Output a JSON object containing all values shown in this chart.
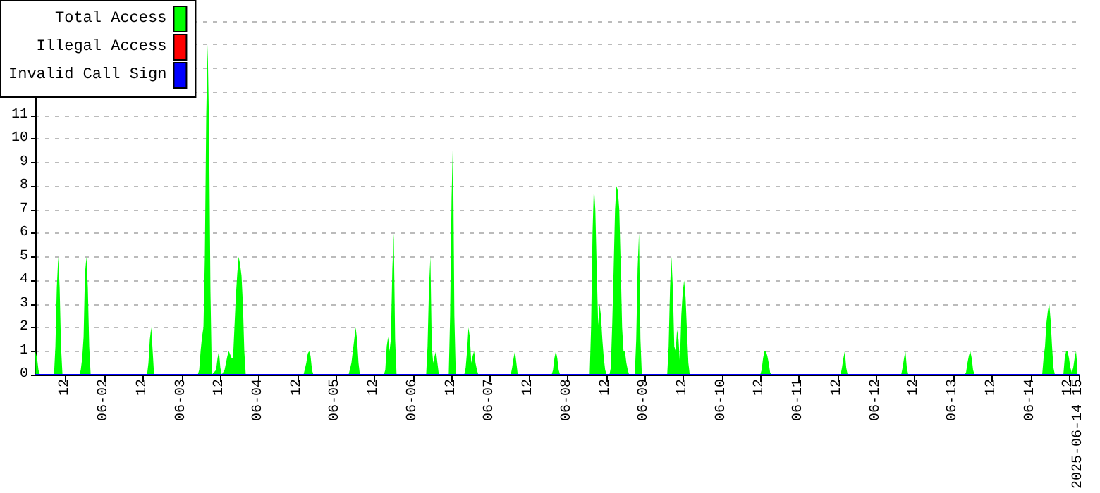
{
  "chart_data": {
    "type": "area",
    "legend": "top left",
    "grid": "y",
    "marker": "none",
    "line_style": "solid",
    "ylim": [
      0,
      15
    ],
    "yticks": [
      0,
      1,
      2,
      3,
      4,
      5,
      6,
      7,
      8,
      9,
      10,
      11,
      {
        "value": 12,
        "label": null
      },
      {
        "value": 13,
        "label": null
      },
      {
        "value": 14,
        "label": null
      },
      {
        "value": 15,
        "label": null
      }
    ],
    "xlim": [
      "2025-06-01T02:30",
      "2025-06-14T15:00"
    ],
    "xticks": [
      {
        "value": "2025-06-01T12:00",
        "label": "12"
      },
      {
        "value": "2025-06-02T00:00",
        "label": "06-02"
      },
      {
        "value": "2025-06-02T12:00",
        "label": "12"
      },
      {
        "value": "2025-06-03T00:00",
        "label": "06-03"
      },
      {
        "value": "2025-06-03T12:00",
        "label": "12"
      },
      {
        "value": "2025-06-04T00:00",
        "label": "06-04"
      },
      {
        "value": "2025-06-04T12:00",
        "label": "12"
      },
      {
        "value": "2025-06-05T00:00",
        "label": "06-05"
      },
      {
        "value": "2025-06-05T12:00",
        "label": "12"
      },
      {
        "value": "2025-06-06T00:00",
        "label": "06-06"
      },
      {
        "value": "2025-06-06T12:00",
        "label": "12"
      },
      {
        "value": "2025-06-07T00:00",
        "label": "06-07"
      },
      {
        "value": "2025-06-07T12:00",
        "label": "12"
      },
      {
        "value": "2025-06-08T00:00",
        "label": "06-08"
      },
      {
        "value": "2025-06-08T12:00",
        "label": "12"
      },
      {
        "value": "2025-06-09T00:00",
        "label": "06-09"
      },
      {
        "value": "2025-06-09T12:00",
        "label": "12"
      },
      {
        "value": "2025-06-10T00:00",
        "label": "06-10"
      },
      {
        "value": "2025-06-10T12:00",
        "label": "12"
      },
      {
        "value": "2025-06-11T00:00",
        "label": "06-11"
      },
      {
        "value": "2025-06-11T12:00",
        "label": "12"
      },
      {
        "value": "2025-06-12T00:00",
        "label": "06-12"
      },
      {
        "value": "2025-06-12T12:00",
        "label": "12"
      },
      {
        "value": "2025-06-13T00:00",
        "label": "06-13"
      },
      {
        "value": "2025-06-13T12:00",
        "label": "12"
      },
      {
        "value": "2025-06-14T00:00",
        "label": "06-14"
      },
      {
        "value": "2025-06-14T12:00",
        "label": "12"
      },
      {
        "value": "2025-06-14T15:00",
        "label": "2025-06-14 15"
      }
    ],
    "series": [
      {
        "name": "Total Access",
        "color": "#00ff00",
        "x": [
          "2025-06-01T02:30",
          "2025-06-01T02:38",
          "2025-06-01T03:04",
          "2025-06-01T03:30",
          "2025-06-01T03:57",
          "2025-06-01T08:20",
          "2025-06-01T08:46",
          "2025-06-01T09:12",
          "2025-06-01T09:39",
          "2025-06-01T10:05",
          "2025-06-01T10:31",
          "2025-06-01T10:58",
          "2025-06-01T16:13",
          "2025-06-01T16:39",
          "2025-06-01T17:06",
          "2025-06-01T17:32",
          "2025-06-01T17:58",
          "2025-06-01T18:25",
          "2025-06-01T18:51",
          "2025-06-01T19:17",
          "2025-06-01T19:44",
          "2025-06-02T13:16",
          "2025-06-02T13:42",
          "2025-06-02T14:08",
          "2025-06-02T14:34",
          "2025-06-02T15:01",
          "2025-06-02T15:27",
          "2025-06-03T05:02",
          "2025-06-03T05:29",
          "2025-06-03T05:55",
          "2025-06-03T06:21",
          "2025-06-03T06:48",
          "2025-06-03T07:14",
          "2025-06-03T07:40",
          "2025-06-03T08:06",
          "2025-06-03T08:33",
          "2025-06-03T08:59",
          "2025-06-03T09:25",
          "2025-06-03T10:44",
          "2025-06-03T11:11",
          "2025-06-03T11:37",
          "2025-06-03T12:03",
          "2025-06-03T12:29",
          "2025-06-03T13:22",
          "2025-06-03T13:48",
          "2025-06-03T14:15",
          "2025-06-03T14:41",
          "2025-06-03T15:34",
          "2025-06-03T16:00",
          "2025-06-03T16:26",
          "2025-06-03T16:52",
          "2025-06-03T17:19",
          "2025-06-03T17:45",
          "2025-06-03T18:11",
          "2025-06-03T18:38",
          "2025-06-03T19:04",
          "2025-06-03T19:30",
          "2025-06-03T19:57",
          "2025-06-04T13:55",
          "2025-06-04T14:47",
          "2025-06-04T15:14",
          "2025-06-04T15:40",
          "2025-06-04T16:06",
          "2025-06-04T16:33",
          "2025-06-04T16:59",
          "2025-06-05T03:56",
          "2025-06-05T04:49",
          "2025-06-05T05:15",
          "2025-06-05T05:42",
          "2025-06-05T06:08",
          "2025-06-05T06:34",
          "2025-06-05T07:01",
          "2025-06-05T07:27",
          "2025-06-05T14:54",
          "2025-06-05T15:20",
          "2025-06-05T15:47",
          "2025-06-05T16:13",
          "2025-06-05T16:39",
          "2025-06-05T17:05",
          "2025-06-05T17:32",
          "2025-06-05T17:58",
          "2025-06-05T18:24",
          "2025-06-05T18:51",
          "2025-06-06T04:03",
          "2025-06-06T04:29",
          "2025-06-06T04:56",
          "2025-06-06T05:22",
          "2025-06-06T05:48",
          "2025-06-06T06:14",
          "2025-06-06T06:41",
          "2025-06-06T07:07",
          "2025-06-06T07:33",
          "2025-06-06T08:00",
          "2025-06-06T11:04",
          "2025-06-06T11:30",
          "2025-06-06T11:57",
          "2025-06-06T12:23",
          "2025-06-06T12:49",
          "2025-06-06T13:16",
          "2025-06-06T15:53",
          "2025-06-06T16:20",
          "2025-06-06T16:46",
          "2025-06-06T17:12",
          "2025-06-06T17:38",
          "2025-06-06T18:05",
          "2025-06-06T18:31",
          "2025-06-06T18:57",
          "2025-06-06T19:23",
          "2025-06-06T19:50",
          "2025-06-06T20:16",
          "2025-06-07T06:21",
          "2025-06-07T06:47",
          "2025-06-07T07:14",
          "2025-06-07T07:40",
          "2025-06-07T08:06",
          "2025-06-07T08:32",
          "2025-06-07T19:04",
          "2025-06-07T19:30",
          "2025-06-07T19:56",
          "2025-06-07T20:23",
          "2025-06-07T20:49",
          "2025-06-07T21:15",
          "2025-06-07T21:41",
          "2025-06-08T06:54",
          "2025-06-08T07:20",
          "2025-06-08T07:47",
          "2025-06-08T08:13",
          "2025-06-08T08:39",
          "2025-06-08T09:05",
          "2025-06-08T09:32",
          "2025-06-08T09:58",
          "2025-06-08T10:24",
          "2025-06-08T10:50",
          "2025-06-08T11:17",
          "2025-06-08T11:43",
          "2025-06-08T12:09",
          "2025-06-08T13:02",
          "2025-06-08T13:28",
          "2025-06-08T13:55",
          "2025-06-08T14:21",
          "2025-06-08T14:47",
          "2025-06-08T15:13",
          "2025-06-08T15:40",
          "2025-06-08T16:06",
          "2025-06-08T16:32",
          "2025-06-08T16:59",
          "2025-06-08T17:25",
          "2025-06-08T17:51",
          "2025-06-08T18:18",
          "2025-06-08T18:44",
          "2025-06-08T19:10",
          "2025-06-08T20:55",
          "2025-06-08T21:22",
          "2025-06-08T21:48",
          "2025-06-08T22:14",
          "2025-06-08T22:41",
          "2025-06-08T23:07",
          "2025-06-09T07:00",
          "2025-06-09T07:27",
          "2025-06-09T07:53",
          "2025-06-09T08:19",
          "2025-06-09T08:45",
          "2025-06-09T09:12",
          "2025-06-09T09:38",
          "2025-06-09T10:04",
          "2025-06-09T10:31",
          "2025-06-09T10:57",
          "2025-06-09T11:23",
          "2025-06-09T11:50",
          "2025-06-09T12:16",
          "2025-06-09T12:42",
          "2025-06-09T13:08",
          "2025-06-09T13:35",
          "2025-06-09T14:01",
          "2025-06-10T11:56",
          "2025-06-10T12:22",
          "2025-06-10T12:49",
          "2025-06-10T13:15",
          "2025-06-10T13:41",
          "2025-06-10T14:08",
          "2025-06-10T14:34",
          "2025-06-10T15:00",
          "2025-06-10T15:26",
          "2025-06-11T12:55",
          "2025-06-11T13:21",
          "2025-06-11T13:48",
          "2025-06-11T14:14",
          "2025-06-11T14:40",
          "2025-06-11T15:07",
          "2025-06-12T07:46",
          "2025-06-12T08:12",
          "2025-06-12T08:39",
          "2025-06-12T09:05",
          "2025-06-12T09:31",
          "2025-06-12T09:58",
          "2025-06-13T03:30",
          "2025-06-13T03:56",
          "2025-06-13T04:22",
          "2025-06-13T04:48",
          "2025-06-13T05:15",
          "2025-06-13T05:41",
          "2025-06-13T06:07",
          "2025-06-13T06:34",
          "2025-06-14T03:36",
          "2025-06-14T04:02",
          "2025-06-14T04:29",
          "2025-06-14T04:55",
          "2025-06-14T05:21",
          "2025-06-14T05:48",
          "2025-06-14T06:14",
          "2025-06-14T06:40",
          "2025-06-14T07:06",
          "2025-06-14T07:33",
          "2025-06-14T10:11",
          "2025-06-14T10:37",
          "2025-06-14T11:03",
          "2025-06-14T11:30",
          "2025-06-14T11:56",
          "2025-06-14T12:22",
          "2025-06-14T12:48",
          "2025-06-14T13:15",
          "2025-06-14T13:41",
          "2025-06-14T14:07",
          "2025-06-14T14:34"
        ],
        "values": [
          1,
          1,
          0.7,
          0.2,
          0,
          0,
          1.2,
          3.7,
          5,
          3.7,
          1.2,
          0,
          0,
          0.2,
          0.7,
          1.6,
          4.3,
          5,
          3.7,
          1.2,
          0,
          0,
          0.5,
          1.5,
          2,
          1,
          0,
          0,
          0.2,
          1,
          1.6,
          2,
          5,
          11,
          14,
          10.5,
          3.5,
          0,
          0.2,
          0.7,
          1,
          0.3,
          0,
          0.2,
          0.5,
          0.8,
          1,
          0.7,
          0.7,
          2,
          3.3,
          4.3,
          5,
          4.7,
          4.2,
          3,
          1,
          0,
          0,
          0.5,
          0.9,
          1,
          0.8,
          0.2,
          0,
          0,
          0.5,
          1,
          1.5,
          2,
          1.5,
          0.5,
          0,
          0,
          0.2,
          1.2,
          1.6,
          1,
          1.5,
          4.5,
          6,
          1.5,
          0,
          0,
          1.2,
          3.7,
          5,
          1.2,
          0.5,
          0.8,
          1,
          0.5,
          0,
          0,
          2.5,
          7.5,
          10,
          2.5,
          0,
          0,
          0.3,
          1,
          2,
          1.6,
          0.5,
          0.8,
          1,
          0.5,
          0.2,
          0,
          0,
          0.3,
          0.7,
          1,
          0.5,
          0,
          0,
          0.2,
          0.7,
          1,
          0.7,
          0.2,
          0,
          0,
          2,
          6,
          8,
          7,
          4.5,
          2.1,
          3,
          2.5,
          1.5,
          0.7,
          0.2,
          0,
          0,
          0.3,
          2.2,
          4.5,
          7,
          8,
          7.8,
          7,
          4.7,
          2,
          1,
          1,
          0.5,
          0.2,
          0,
          0,
          1.5,
          4.5,
          6,
          1.5,
          0,
          0,
          1.2,
          3.7,
          5,
          3.7,
          1.2,
          1,
          1.9,
          1.5,
          0.5,
          2.5,
          3.5,
          4,
          3.3,
          1.9,
          0.5,
          0,
          0,
          0.2,
          0.7,
          1,
          1,
          0.8,
          0.5,
          0.1,
          0,
          0,
          0.3,
          0.7,
          1,
          0.3,
          0,
          0,
          0.3,
          0.7,
          1,
          0.3,
          0,
          0,
          0.1,
          0.5,
          0.8,
          1,
          0.7,
          0.2,
          0,
          0,
          0.7,
          1.2,
          2.2,
          2.7,
          3,
          2.3,
          1.2,
          0.3,
          0,
          0,
          0.7,
          1,
          1,
          0.7,
          0.3,
          0.1,
          0.3,
          0.7,
          1,
          0.3
        ]
      },
      {
        "name": "Illegal Access",
        "color": "#ff0000",
        "type": "line"
      },
      {
        "name": "Invalid Call Sign",
        "color": "#0000ff",
        "type": "line",
        "x": [
          "2025-06-01T02:30",
          "2025-06-14T15:00"
        ],
        "values": [
          0,
          0
        ]
      }
    ]
  }
}
